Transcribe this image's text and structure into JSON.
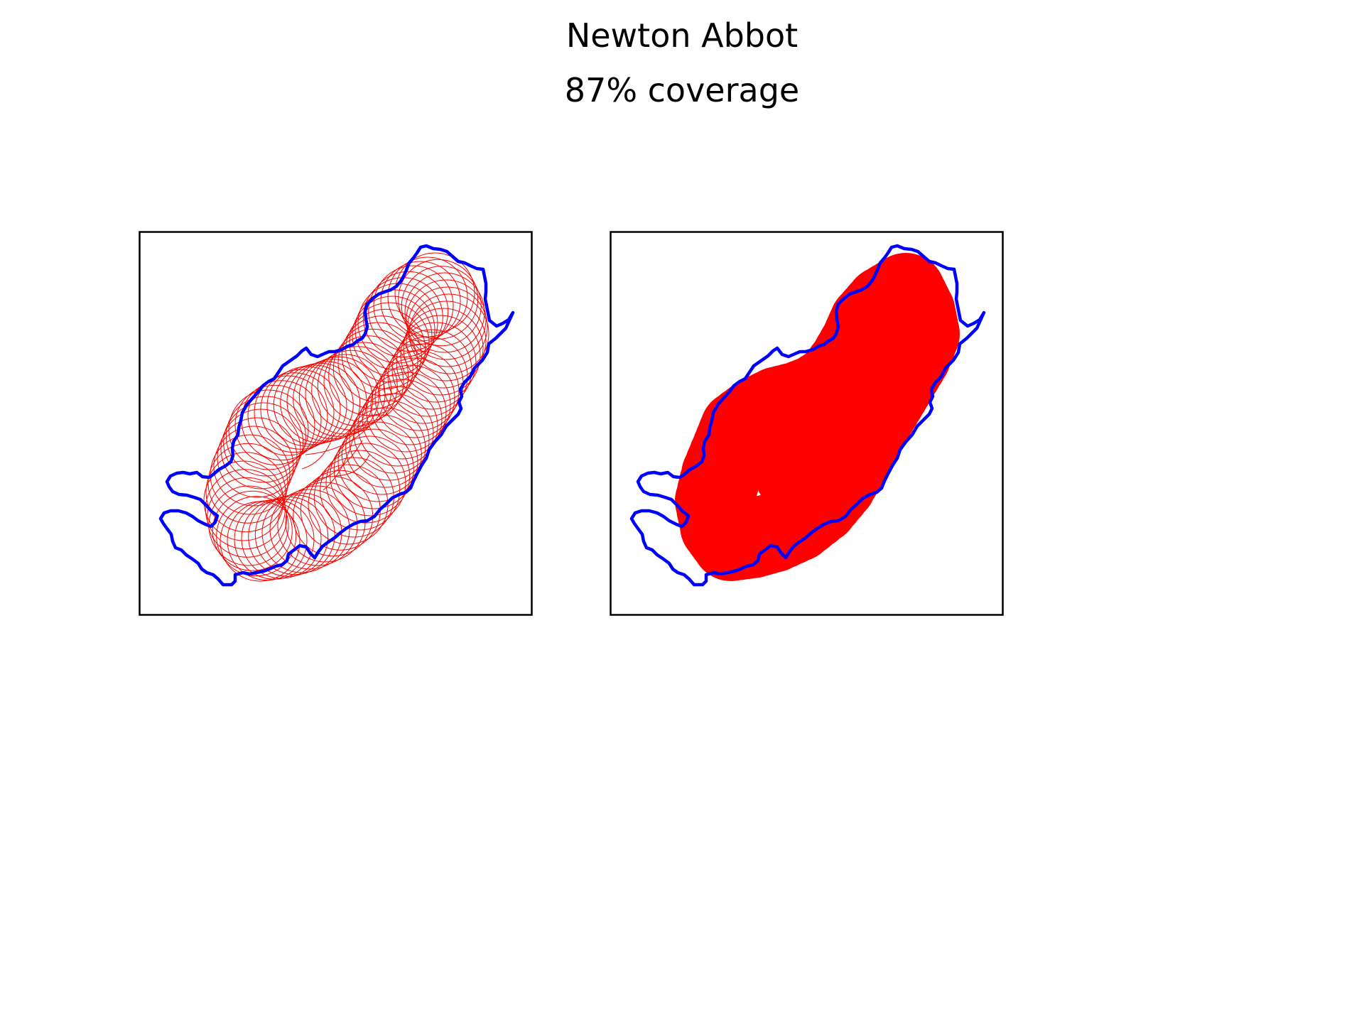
{
  "figure": {
    "title": "Newton Abbot",
    "subtitle": "87% coverage"
  },
  "colors": {
    "boundary": "#0000ff",
    "coverage": "#ff0000",
    "frame": "#000000",
    "background": "#ffffff"
  },
  "panels": [
    {
      "name": "coverage-outline-panel",
      "style": "outline"
    },
    {
      "name": "coverage-filled-panel",
      "style": "filled"
    }
  ]
}
